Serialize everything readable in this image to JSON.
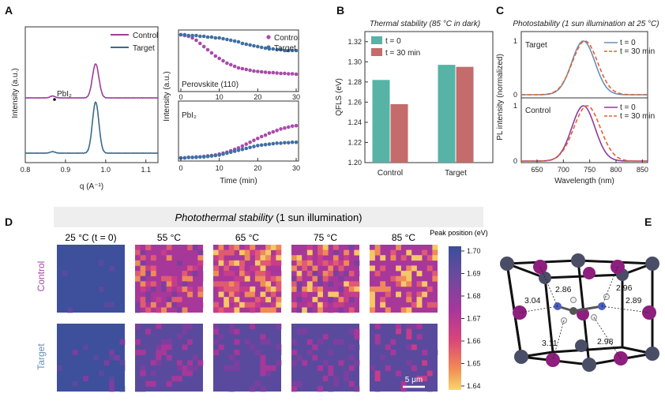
{
  "panels": {
    "A": "A",
    "B": "B",
    "C": "C",
    "D": "D",
    "E": "E"
  },
  "chart_data": [
    {
      "id": "A-xrd",
      "type": "line",
      "xlabel": "q (A⁻¹)",
      "ylabel": "Intensity (a.u.)",
      "xlim": [
        0.8,
        1.13
      ],
      "xticks": [
        "0.8",
        "0.9",
        "1.0",
        "1.1"
      ],
      "annotation": "PbI₂",
      "legend": [
        "Control",
        "Target"
      ],
      "colors": {
        "Control": "#9b3f9b",
        "Target": "#3a6a8c"
      },
      "series": [
        {
          "name": "Control",
          "offset": 1.0,
          "peaks": [
            {
              "q": 0.868,
              "h": 0.05,
              "w": 0.006
            },
            {
              "q": 0.975,
              "h": 0.9,
              "w": 0.008
            }
          ]
        },
        {
          "name": "Target",
          "offset": 0.0,
          "peaks": [
            {
              "q": 0.868,
              "h": 0.04,
              "w": 0.006
            },
            {
              "q": 0.975,
              "h": 1.35,
              "w": 0.008
            }
          ]
        }
      ]
    },
    {
      "id": "A-kinetics",
      "type": "scatter",
      "xlabel": "Time (min)",
      "ylabel": "Intensity (a.u.)",
      "xticks": [
        "0",
        "10",
        "20",
        "30"
      ],
      "top_label": "Perovskite (110)",
      "bottom_label": "PbI₂",
      "legend": [
        "Control",
        "Target"
      ],
      "top": {
        "Control": [
          1.0,
          0.99,
          0.98,
          0.96,
          0.93,
          0.89,
          0.85,
          0.81,
          0.77,
          0.73,
          0.7,
          0.67,
          0.64,
          0.62,
          0.6,
          0.58,
          0.57,
          0.56,
          0.55,
          0.54,
          0.535,
          0.53,
          0.525,
          0.52,
          0.52,
          0.515,
          0.51,
          0.51,
          0.505,
          0.505,
          0.5
        ],
        "Target": [
          1.0,
          1.0,
          0.99,
          0.99,
          0.99,
          0.98,
          0.98,
          0.97,
          0.97,
          0.96,
          0.96,
          0.95,
          0.94,
          0.93,
          0.92,
          0.91,
          0.89,
          0.88,
          0.87,
          0.86,
          0.85,
          0.84,
          0.83,
          0.82,
          0.82,
          0.81,
          0.81,
          0.8,
          0.8,
          0.8,
          0.8
        ]
      },
      "bottom": {
        "Control": [
          0.0,
          0.0,
          0.01,
          0.01,
          0.02,
          0.02,
          0.03,
          0.04,
          0.05,
          0.06,
          0.08,
          0.1,
          0.12,
          0.15,
          0.18,
          0.21,
          0.25,
          0.29,
          0.33,
          0.37,
          0.41,
          0.45,
          0.48,
          0.52,
          0.55,
          0.58,
          0.61,
          0.63,
          0.65,
          0.67,
          0.68
        ],
        "Target": [
          0.0,
          0.0,
          0.01,
          0.01,
          0.01,
          0.02,
          0.02,
          0.03,
          0.04,
          0.05,
          0.06,
          0.08,
          0.1,
          0.12,
          0.14,
          0.16,
          0.18,
          0.2,
          0.22,
          0.24,
          0.26,
          0.27,
          0.28,
          0.29,
          0.3,
          0.31,
          0.31,
          0.32,
          0.32,
          0.33,
          0.33
        ]
      }
    },
    {
      "id": "B-bar",
      "type": "bar",
      "title": "Thermal stability (85 °C in dark)",
      "ylabel": "QFLS (eV)",
      "ylim": [
        1.2,
        1.33
      ],
      "yticks": [
        "1.20",
        "1.22",
        "1.24",
        "1.26",
        "1.28",
        "1.30",
        "1.32"
      ],
      "categories": [
        "Control",
        "Target"
      ],
      "series": [
        {
          "name": "t = 0",
          "color": "#56b3a6",
          "values": [
            1.282,
            1.297
          ]
        },
        {
          "name": "t = 30 min",
          "color": "#c46b6b",
          "values": [
            1.258,
            1.295
          ]
        }
      ]
    },
    {
      "id": "C-pl",
      "type": "line",
      "title": "Photostability (1 sun illumination at 25 °C)",
      "ylabel": "PL intensity (normalized)",
      "xlabel": "Wavelength (nm)",
      "xlim": [
        620,
        860
      ],
      "xticks": [
        "650",
        "700",
        "750",
        "800",
        "850"
      ],
      "yticks": [
        "0",
        "1"
      ],
      "subplots": [
        {
          "label": "Target",
          "colors": {
            "t0": "#6a8fb8",
            "t30": "#e0622f"
          },
          "t0_center": 738,
          "t30_center": 741,
          "width": 22
        },
        {
          "label": "Control",
          "colors": {
            "t0": "#8e3b9e",
            "t30": "#e0622f"
          },
          "t0_center": 738,
          "t30_center": 745,
          "width": 22
        }
      ],
      "legend": [
        "t = 0",
        "t = 30 min"
      ]
    }
  ],
  "panelD": {
    "title_italic": "Photothermal stability",
    "title_rest": " (1 sun illumination)",
    "columns": [
      "25 °C (t = 0)",
      "55 °C",
      "65 °C",
      "75 °C",
      "85 °C"
    ],
    "rows": [
      "Control",
      "Target"
    ],
    "scalebar": "5 μm",
    "colorbar_title": "Peak position (eV)",
    "colorbar_ticks": [
      "1.70",
      "1.69",
      "1.68",
      "1.67",
      "1.66",
      "1.65",
      "1.64"
    ]
  },
  "panelE": {
    "distances": [
      "2.86",
      "2.96",
      "3.04",
      "2.89",
      "3.11",
      "2.98"
    ]
  }
}
